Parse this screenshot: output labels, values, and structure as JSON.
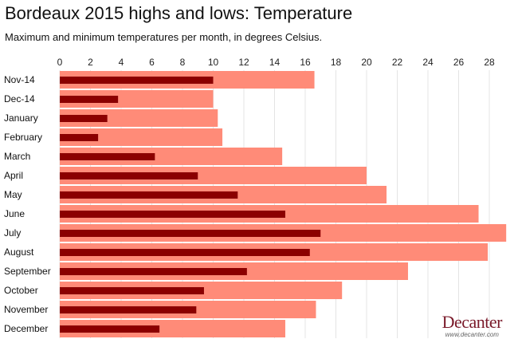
{
  "chart_data": {
    "type": "bar",
    "orientation": "horizontal",
    "title": "Bordeaux 2015 highs and lows: Temperature",
    "subtitle": "Maximum and minimum temperatures per month, in degrees Celsius.",
    "categories": [
      "Nov-14",
      "Dec-14",
      "January",
      "February",
      "March",
      "April",
      "May",
      "June",
      "July",
      "August",
      "September",
      "October",
      "November",
      "December"
    ],
    "series": [
      {
        "values": [
          16.6,
          10.0,
          10.3,
          10.6,
          14.5,
          20.0,
          21.3,
          27.3,
          29.1,
          27.9,
          22.7,
          18.4,
          16.7,
          14.7
        ],
        "color": "#ff8b78"
      },
      {
        "values": [
          10.0,
          3.8,
          3.1,
          2.5,
          6.2,
          9.0,
          11.6,
          14.7,
          17.0,
          16.3,
          12.2,
          9.4,
          8.9,
          6.5
        ],
        "color": "#8b0000"
      }
    ],
    "xticks": [
      0,
      2,
      4,
      6,
      8,
      10,
      12,
      14,
      16,
      18,
      20,
      22,
      24,
      26,
      28
    ],
    "xlim": [
      0,
      29.1
    ],
    "grid": true,
    "axis_position": "top"
  },
  "logo": {
    "name": "Decanter",
    "url": "www.decanter.com"
  }
}
